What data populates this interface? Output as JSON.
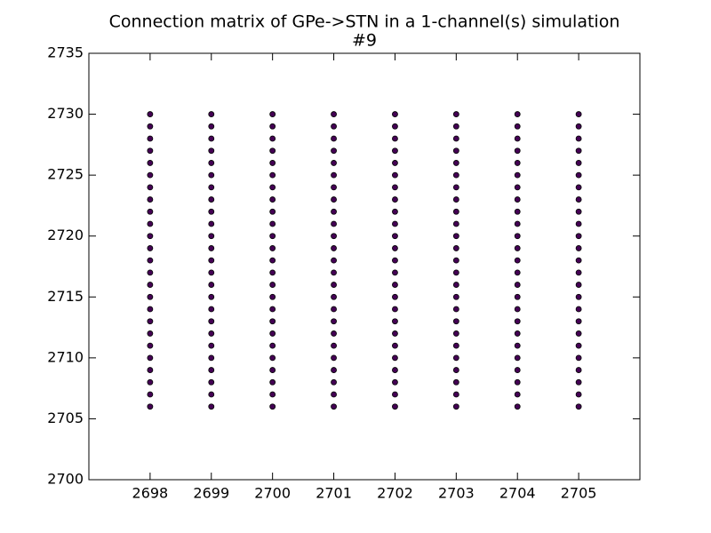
{
  "chart_data": {
    "type": "scatter",
    "title": "Connection matrix of GPe->STN in a 1-channel(s) simulation",
    "subtitle": "#9",
    "color": "#440154",
    "x": [
      2698,
      2698,
      2698,
      2698,
      2698,
      2698,
      2698,
      2698,
      2698,
      2698,
      2698,
      2698,
      2698,
      2698,
      2698,
      2698,
      2698,
      2698,
      2698,
      2698,
      2698,
      2698,
      2698,
      2698,
      2698,
      2699,
      2699,
      2699,
      2699,
      2699,
      2699,
      2699,
      2699,
      2699,
      2699,
      2699,
      2699,
      2699,
      2699,
      2699,
      2699,
      2699,
      2699,
      2699,
      2699,
      2699,
      2699,
      2699,
      2699,
      2699,
      2700,
      2700,
      2700,
      2700,
      2700,
      2700,
      2700,
      2700,
      2700,
      2700,
      2700,
      2700,
      2700,
      2700,
      2700,
      2700,
      2700,
      2700,
      2700,
      2700,
      2700,
      2700,
      2700,
      2700,
      2700,
      2701,
      2701,
      2701,
      2701,
      2701,
      2701,
      2701,
      2701,
      2701,
      2701,
      2701,
      2701,
      2701,
      2701,
      2701,
      2701,
      2701,
      2701,
      2701,
      2701,
      2701,
      2701,
      2701,
      2701,
      2701,
      2702,
      2702,
      2702,
      2702,
      2702,
      2702,
      2702,
      2702,
      2702,
      2702,
      2702,
      2702,
      2702,
      2702,
      2702,
      2702,
      2702,
      2702,
      2702,
      2702,
      2702,
      2702,
      2702,
      2702,
      2702,
      2703,
      2703,
      2703,
      2703,
      2703,
      2703,
      2703,
      2703,
      2703,
      2703,
      2703,
      2703,
      2703,
      2703,
      2703,
      2703,
      2703,
      2703,
      2703,
      2703,
      2703,
      2703,
      2703,
      2703,
      2703,
      2704,
      2704,
      2704,
      2704,
      2704,
      2704,
      2704,
      2704,
      2704,
      2704,
      2704,
      2704,
      2704,
      2704,
      2704,
      2704,
      2704,
      2704,
      2704,
      2704,
      2704,
      2704,
      2704,
      2704,
      2704,
      2705,
      2705,
      2705,
      2705,
      2705,
      2705,
      2705,
      2705,
      2705,
      2705,
      2705,
      2705,
      2705,
      2705,
      2705,
      2705,
      2705,
      2705,
      2705,
      2705,
      2705,
      2705,
      2705,
      2705,
      2705
    ],
    "y": [
      2706,
      2707,
      2708,
      2709,
      2710,
      2711,
      2712,
      2713,
      2714,
      2715,
      2716,
      2717,
      2718,
      2719,
      2720,
      2721,
      2722,
      2723,
      2724,
      2725,
      2726,
      2727,
      2728,
      2729,
      2730,
      2706,
      2707,
      2708,
      2709,
      2710,
      2711,
      2712,
      2713,
      2714,
      2715,
      2716,
      2717,
      2718,
      2719,
      2720,
      2721,
      2722,
      2723,
      2724,
      2725,
      2726,
      2727,
      2728,
      2729,
      2730,
      2706,
      2707,
      2708,
      2709,
      2710,
      2711,
      2712,
      2713,
      2714,
      2715,
      2716,
      2717,
      2718,
      2719,
      2720,
      2721,
      2722,
      2723,
      2724,
      2725,
      2726,
      2727,
      2728,
      2729,
      2730,
      2706,
      2707,
      2708,
      2709,
      2710,
      2711,
      2712,
      2713,
      2714,
      2715,
      2716,
      2717,
      2718,
      2719,
      2720,
      2721,
      2722,
      2723,
      2724,
      2725,
      2726,
      2727,
      2728,
      2729,
      2730,
      2706,
      2707,
      2708,
      2709,
      2710,
      2711,
      2712,
      2713,
      2714,
      2715,
      2716,
      2717,
      2718,
      2719,
      2720,
      2721,
      2722,
      2723,
      2724,
      2725,
      2726,
      2727,
      2728,
      2729,
      2730,
      2706,
      2707,
      2708,
      2709,
      2710,
      2711,
      2712,
      2713,
      2714,
      2715,
      2716,
      2717,
      2718,
      2719,
      2720,
      2721,
      2722,
      2723,
      2724,
      2725,
      2726,
      2727,
      2728,
      2729,
      2730,
      2706,
      2707,
      2708,
      2709,
      2710,
      2711,
      2712,
      2713,
      2714,
      2715,
      2716,
      2717,
      2718,
      2719,
      2720,
      2721,
      2722,
      2723,
      2724,
      2725,
      2726,
      2727,
      2728,
      2729,
      2730,
      2706,
      2707,
      2708,
      2709,
      2710,
      2711,
      2712,
      2713,
      2714,
      2715,
      2716,
      2717,
      2718,
      2719,
      2720,
      2721,
      2722,
      2723,
      2724,
      2725,
      2726,
      2727,
      2728,
      2729,
      2730
    ],
    "xlim": [
      2697,
      2706
    ],
    "xticks": [
      2698,
      2699,
      2700,
      2701,
      2702,
      2703,
      2704,
      2705
    ],
    "ylim": [
      2700,
      2735
    ],
    "yticks": [
      2700,
      2705,
      2710,
      2715,
      2720,
      2725,
      2730,
      2735
    ]
  }
}
